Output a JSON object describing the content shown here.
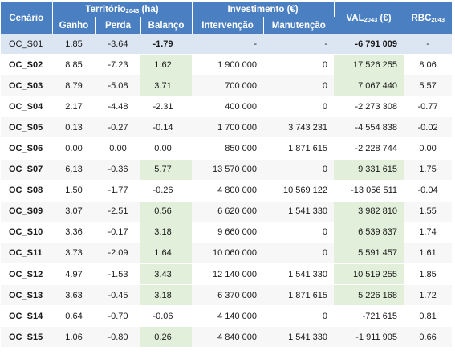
{
  "header": {
    "scenario": "Cenário",
    "territory": "Território",
    "territory_sub": "2043",
    "territory_unit": " (ha)",
    "investment": "Investimento (€)",
    "val": "VAL",
    "val_sub": "2043",
    "val_unit": " (€)",
    "rbc": "RBC",
    "rbc_sub": "2043",
    "gain": "Ganho",
    "loss": "Perda",
    "balance": "Balanço",
    "intervention": "Intervenção",
    "maintenance": "Manutenção"
  },
  "rows": [
    {
      "name": "OC_S01",
      "gain": "1.85",
      "loss": "-3.64",
      "balance": "-1.79",
      "intervention": "-",
      "maintenance": "-",
      "val": "-6 791 009",
      "rbc": "-",
      "balance_green": false,
      "val_green": false
    },
    {
      "name": "OC_S02",
      "gain": "8.85",
      "loss": "-7.23",
      "balance": "1.62",
      "intervention": "1 900 000",
      "maintenance": "0",
      "val": "17 526 255",
      "rbc": "8.06",
      "balance_green": true,
      "val_green": true
    },
    {
      "name": "OC_S03",
      "gain": "8.79",
      "loss": "-5.08",
      "balance": "3.71",
      "intervention": "700 000",
      "maintenance": "0",
      "val": "7 067 440",
      "rbc": "5.57",
      "balance_green": true,
      "val_green": true
    },
    {
      "name": "OC_S04",
      "gain": "2.17",
      "loss": "-4.48",
      "balance": "-2.31",
      "intervention": "400 000",
      "maintenance": "0",
      "val": "-2 273 308",
      "rbc": "-0.77",
      "balance_green": false,
      "val_green": false
    },
    {
      "name": "OC_S05",
      "gain": "0.13",
      "loss": "-0.27",
      "balance": "-0.14",
      "intervention": "1 700 000",
      "maintenance": "3 743 231",
      "val": "-4 554 838",
      "rbc": "-0.02",
      "balance_green": false,
      "val_green": false
    },
    {
      "name": "OC_S06",
      "gain": "0.00",
      "loss": "0.00",
      "balance": "0.00",
      "intervention": "850 000",
      "maintenance": "1 871 615",
      "val": "-2 228 744",
      "rbc": "0.00",
      "balance_green": false,
      "val_green": false
    },
    {
      "name": "OC_S07",
      "gain": "6.13",
      "loss": "-0.36",
      "balance": "5.77",
      "intervention": "13 570 000",
      "maintenance": "0",
      "val": "9 331 615",
      "rbc": "1.75",
      "balance_green": true,
      "val_green": true
    },
    {
      "name": "OC_S08",
      "gain": "1.50",
      "loss": "-1.77",
      "balance": "-0.26",
      "intervention": "4 800 000",
      "maintenance": "10 569 122",
      "val": "-13 056 511",
      "rbc": "-0.04",
      "balance_green": false,
      "val_green": false
    },
    {
      "name": "OC_S09",
      "gain": "3.07",
      "loss": "-2.51",
      "balance": "0.56",
      "intervention": "6 620 000",
      "maintenance": "1 541 330",
      "val": "3 982 810",
      "rbc": "1.55",
      "balance_green": true,
      "val_green": true
    },
    {
      "name": "OC_S10",
      "gain": "3.36",
      "loss": "-0.17",
      "balance": "3.18",
      "intervention": "9 660 000",
      "maintenance": "0",
      "val": "6 539 837",
      "rbc": "1.74",
      "balance_green": true,
      "val_green": true
    },
    {
      "name": "OC_S11",
      "gain": "3.73",
      "loss": "-2.09",
      "balance": "1.64",
      "intervention": "10 060 000",
      "maintenance": "0",
      "val": "5 591 457",
      "rbc": "1.61",
      "balance_green": true,
      "val_green": true
    },
    {
      "name": "OC_S12",
      "gain": "4.97",
      "loss": "-1.53",
      "balance": "3.43",
      "intervention": "12 140 000",
      "maintenance": "1 541 330",
      "val": "10 519 255",
      "rbc": "1.85",
      "balance_green": true,
      "val_green": true
    },
    {
      "name": "OC_S13",
      "gain": "3.63",
      "loss": "-0.45",
      "balance": "3.18",
      "intervention": "6 370 000",
      "maintenance": "1 871 615",
      "val": "5 226 168",
      "rbc": "1.72",
      "balance_green": true,
      "val_green": true
    },
    {
      "name": "OC_S14",
      "gain": "0.64",
      "loss": "-0.70",
      "balance": "-0.06",
      "intervention": "4 140 000",
      "maintenance": "0",
      "val": "-721 615",
      "rbc": "0.81",
      "balance_green": false,
      "val_green": false
    },
    {
      "name": "OC_S15",
      "gain": "1.06",
      "loss": "-0.80",
      "balance": "0.26",
      "intervention": "4 840 000",
      "maintenance": "1 541 330",
      "val": "-1 911 905",
      "rbc": "0.66",
      "balance_green": true,
      "val_green": false
    }
  ]
}
